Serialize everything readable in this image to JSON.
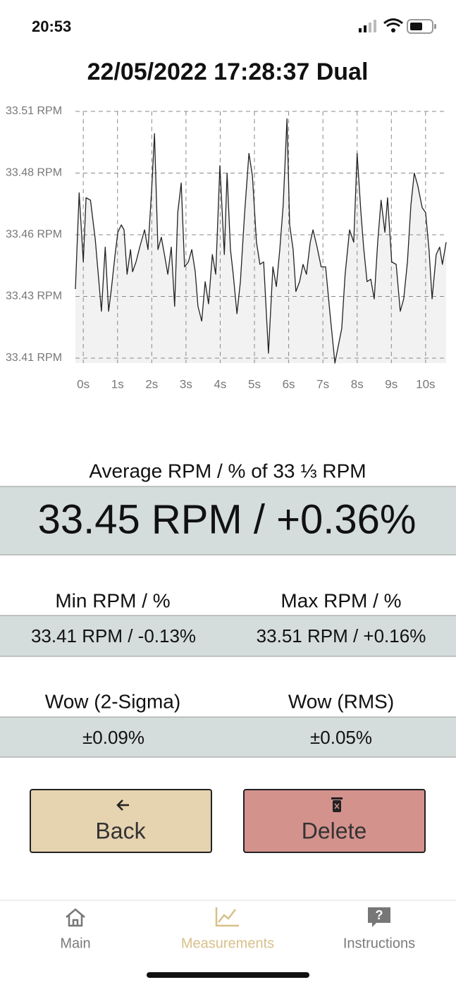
{
  "status": {
    "time": "20:53"
  },
  "chart_data": {
    "type": "line",
    "title": "22/05/2022 17:28:37 Dual",
    "color": "#222222",
    "fill": "#f2f2f2",
    "grid": true,
    "xlim": [
      -0.23,
      10.6
    ],
    "xticks": [
      {
        "value": 0,
        "label": "0s"
      },
      {
        "value": 1,
        "label": "1s"
      },
      {
        "value": 2,
        "label": "2s"
      },
      {
        "value": 3,
        "label": "3s"
      },
      {
        "value": 4,
        "label": "4s"
      },
      {
        "value": 5,
        "label": "5s"
      },
      {
        "value": 6,
        "label": "6s"
      },
      {
        "value": 7,
        "label": "7s"
      },
      {
        "value": 8,
        "label": "8s"
      },
      {
        "value": 9,
        "label": "9s"
      },
      {
        "value": 10,
        "label": "10s"
      }
    ],
    "ylim": [
      33.408,
      33.51
    ],
    "yticks": [
      {
        "value": 33.51,
        "label": "33.51 RPM"
      },
      {
        "value": 33.485,
        "label": "33.48 RPM"
      },
      {
        "value": 33.46,
        "label": "33.46 RPM"
      },
      {
        "value": 33.435,
        "label": "33.43 RPM"
      },
      {
        "value": 33.41,
        "label": "33.41 RPM"
      }
    ],
    "x": [
      -0.23,
      -0.12,
      0,
      0.08,
      0.21,
      0.35,
      0.45,
      0.53,
      0.64,
      0.74,
      0.82,
      0.93,
      1.01,
      1.11,
      1.19,
      1.28,
      1.38,
      1.44,
      1.54,
      1.65,
      1.79,
      1.89,
      2.0,
      2.08,
      2.18,
      2.28,
      2.37,
      2.47,
      2.57,
      2.67,
      2.76,
      2.86,
      2.96,
      3.07,
      3.17,
      3.27,
      3.35,
      3.46,
      3.56,
      3.66,
      3.77,
      3.87,
      3.99,
      4.12,
      4.2,
      4.3,
      4.38,
      4.49,
      4.59,
      4.71,
      4.84,
      4.94,
      5.06,
      5.16,
      5.27,
      5.41,
      5.54,
      5.64,
      5.74,
      5.84,
      5.95,
      6.03,
      6.13,
      6.21,
      6.32,
      6.42,
      6.52,
      6.63,
      6.71,
      6.83,
      6.95,
      7.08,
      7.2,
      7.35,
      7.45,
      7.55,
      7.65,
      7.78,
      7.9,
      8.0,
      8.11,
      8.19,
      8.29,
      8.4,
      8.5,
      8.6,
      8.7,
      8.81,
      8.89,
      9.01,
      9.14,
      9.26,
      9.36,
      9.47,
      9.57,
      9.67,
      9.77,
      9.9,
      10.0,
      10.1,
      10.19,
      10.31,
      10.41,
      10.49,
      10.6
    ],
    "values": [
      33.438,
      33.477,
      33.449,
      33.475,
      33.474,
      33.458,
      33.442,
      33.429,
      33.455,
      33.429,
      33.438,
      33.452,
      33.461,
      33.464,
      33.462,
      33.444,
      33.454,
      33.445,
      33.449,
      33.455,
      33.462,
      33.454,
      33.479,
      33.501,
      33.454,
      33.459,
      33.452,
      33.444,
      33.455,
      33.431,
      33.469,
      33.481,
      33.447,
      33.449,
      33.454,
      33.445,
      33.431,
      33.425,
      33.441,
      33.432,
      33.452,
      33.444,
      33.488,
      33.452,
      33.485,
      33.454,
      33.444,
      33.428,
      33.441,
      33.468,
      33.493,
      33.484,
      33.457,
      33.448,
      33.449,
      33.412,
      33.447,
      33.439,
      33.454,
      33.472,
      33.507,
      33.464,
      33.454,
      33.437,
      33.441,
      33.448,
      33.444,
      33.457,
      33.462,
      33.455,
      33.447,
      33.447,
      33.429,
      33.408,
      33.415,
      33.422,
      33.444,
      33.462,
      33.457,
      33.493,
      33.469,
      33.455,
      33.441,
      33.442,
      33.434,
      33.457,
      33.474,
      33.461,
      33.475,
      33.449,
      33.448,
      33.429,
      33.434,
      33.449,
      33.472,
      33.485,
      33.48,
      33.471,
      33.469,
      33.454,
      33.434,
      33.452,
      33.455,
      33.448,
      33.457
    ]
  },
  "average": {
    "label": "Average RPM / % of 33 ⅓ RPM",
    "value": "33.45 RPM / +0.36%"
  },
  "stats": [
    {
      "label": "Min RPM / %",
      "value": "33.41 RPM / -0.13%"
    },
    {
      "label": "Max RPM / %",
      "value": "33.51 RPM / +0.16%"
    },
    {
      "label": "Wow (2-Sigma)",
      "value": "±0.09%"
    },
    {
      "label": "Wow (RMS)",
      "value": "±0.05%"
    }
  ],
  "buttons": {
    "back": "Back",
    "delete": "Delete"
  },
  "tabs": [
    "Main",
    "Measurements",
    "Instructions"
  ]
}
